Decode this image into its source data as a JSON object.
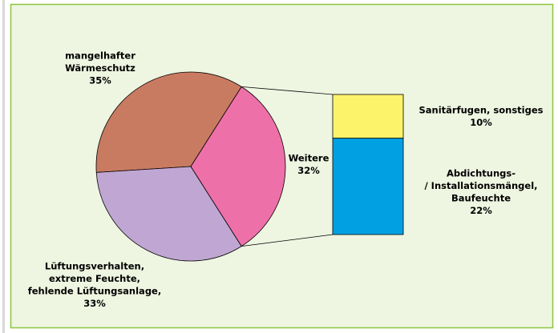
{
  "chart_data": {
    "type": "pie-of-bar",
    "categories": [
      [
        "mangelhafter",
        "Wärmeschutz"
      ],
      [
        "Lüftungsverhalten,",
        "extreme Feuchte,",
        "fehlende Lüftungsanlage,"
      ],
      [
        "Weitere"
      ]
    ],
    "values": [
      35,
      33,
      32
    ],
    "value_labels": [
      "35%",
      "33%",
      "32%"
    ],
    "colors": [
      "#c97b62",
      "#c0a7d3",
      "#ee70a9"
    ],
    "breakdown": {
      "categories": [
        [
          "Sanitärfugen, sonstiges"
        ],
        [
          "Abdichtungs-",
          "/ Installationsmängel,",
          "Baufeuchte"
        ]
      ],
      "values": [
        10,
        22
      ],
      "value_labels": [
        "10%",
        "22%"
      ],
      "colors": [
        "#fdf36b",
        "#00a0e2"
      ]
    }
  }
}
